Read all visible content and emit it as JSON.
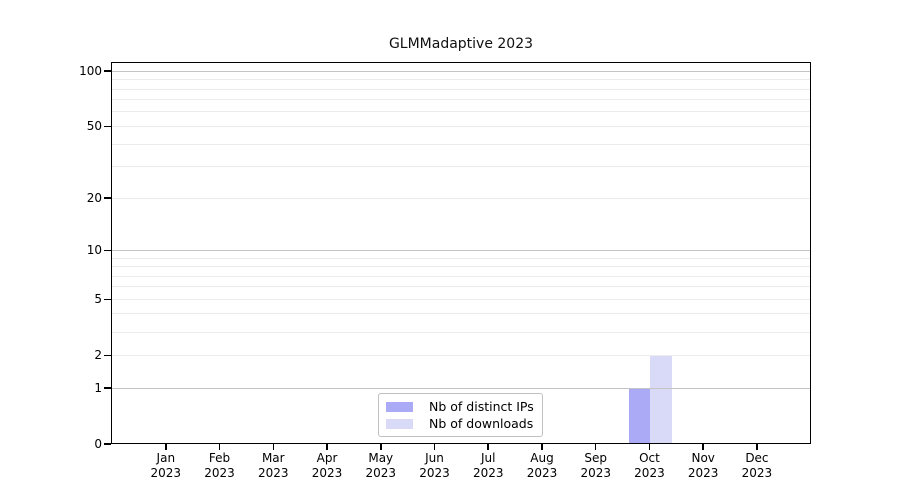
{
  "title": "GLMMadaptive 2023",
  "chart_data": {
    "type": "bar",
    "title": "GLMMadaptive 2023",
    "categories": [
      "Jan",
      "Feb",
      "Mar",
      "Apr",
      "May",
      "Jun",
      "Jul",
      "Aug",
      "Sep",
      "Oct",
      "Nov",
      "Dec"
    ],
    "year_label": "2023",
    "series": [
      {
        "name": "Nb of distinct IPs",
        "color": "#aaaaf6",
        "values": [
          0,
          0,
          0,
          0,
          0,
          0,
          0,
          0,
          0,
          1,
          0,
          0
        ]
      },
      {
        "name": "Nb of downloads",
        "color": "#d9d9f8",
        "values": [
          0,
          0,
          0,
          0,
          0,
          0,
          0,
          0,
          0,
          2,
          0,
          0
        ]
      }
    ],
    "yscale": "log1p",
    "ylim": [
      0,
      112
    ],
    "y_ticks": [
      0,
      1,
      2,
      5,
      10,
      20,
      50,
      100
    ],
    "grid_minor": [
      2,
      3,
      4,
      5,
      6,
      7,
      8,
      9,
      20,
      30,
      40,
      50,
      60,
      70,
      80,
      90
    ],
    "grid_major": [
      1,
      10,
      100
    ],
    "grid": true,
    "legend_position": "bottom-center",
    "colors": {
      "grid_minor": "#ececec",
      "grid_major": "#c4c4c4",
      "axis": "#000000",
      "background": "#ffffff"
    }
  }
}
